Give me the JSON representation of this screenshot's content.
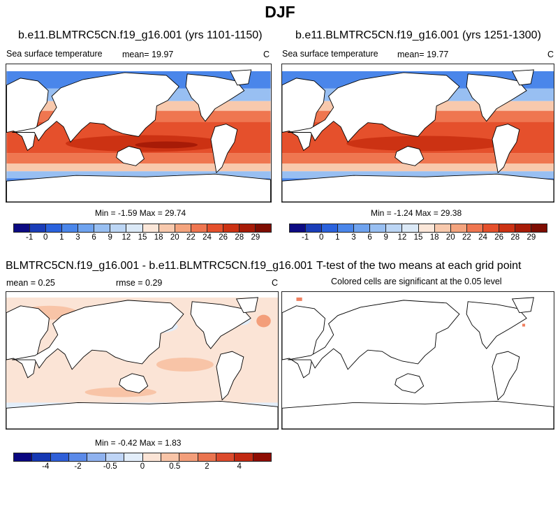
{
  "figure": {
    "title": "DJF"
  },
  "chart_data": [
    {
      "type": "heatmap",
      "name": "case1",
      "title": "b.e11.BLMTRC5CN.f19_g16.001 (yrs 1101-1150)",
      "variable": "Sea surface temperature",
      "mean_label": "mean=",
      "mean": "19.97",
      "units": "C",
      "min_label": "Min =",
      "min": "-1.59",
      "max_label": "Max =",
      "max": "29.74",
      "colorbar_ticks": [
        "-1",
        "0",
        "1",
        "3",
        "6",
        "9",
        "12",
        "15",
        "18",
        "20",
        "22",
        "24",
        "26",
        "28",
        "29"
      ],
      "colors": [
        "#0c0a82",
        "#1a3db8",
        "#2a62dd",
        "#4a86ea",
        "#6fa3ef",
        "#98bff2",
        "#bcd6f5",
        "#dbe9f7",
        "#fbe7d9",
        "#f8c9ad",
        "#f4a47e",
        "#ef7650",
        "#e5502c",
        "#cc3213",
        "#a71b07",
        "#7e0d02"
      ]
    },
    {
      "type": "heatmap",
      "name": "case2",
      "title": "b.e11.BLMTRC5CN.f19_g16.001 (yrs 1251-1300)",
      "variable": "Sea surface temperature",
      "mean_label": "mean=",
      "mean": "19.77",
      "units": "C",
      "min_label": "Min =",
      "min": "-1.24",
      "max_label": "Max =",
      "max": "29.38",
      "colorbar_ticks": [
        "-1",
        "0",
        "1",
        "3",
        "6",
        "9",
        "12",
        "15",
        "18",
        "20",
        "22",
        "24",
        "26",
        "28",
        "29"
      ],
      "colors": [
        "#0c0a82",
        "#1a3db8",
        "#2a62dd",
        "#4a86ea",
        "#6fa3ef",
        "#98bff2",
        "#bcd6f5",
        "#dbe9f7",
        "#fbe7d9",
        "#f8c9ad",
        "#f4a47e",
        "#ef7650",
        "#e5502c",
        "#cc3213",
        "#a71b07",
        "#7e0d02"
      ]
    },
    {
      "type": "heatmap",
      "name": "difference",
      "title": "BLMTRC5CN.f19_g16.001 - b.e11.BLMTRC5CN.f19_g16.001",
      "mean_label": "mean =",
      "mean": "0.25",
      "rmse_label": "rmse =",
      "rmse": "0.29",
      "units": "C",
      "min_label": "Min =",
      "min": "-0.42",
      "max_label": "Max =",
      "max": "1.83",
      "colorbar_ticks": [
        "-4",
        "-2",
        "-0.5",
        "0",
        "0.5",
        "2",
        "4"
      ],
      "colors": [
        "#0a0780",
        "#1538b3",
        "#2f5fd8",
        "#5b8ae9",
        "#8fb2ef",
        "#bfd5f6",
        "#e3eefa",
        "#fbe4d6",
        "#f8c4a7",
        "#f39e7a",
        "#ea744f",
        "#dc4a2c",
        "#c12912",
        "#8e0c02"
      ]
    },
    {
      "type": "heatmap",
      "name": "ttest",
      "title": "T-test of the two means at each grid point",
      "subtitle": "Colored cells are significant at the 0.05 level"
    }
  ]
}
